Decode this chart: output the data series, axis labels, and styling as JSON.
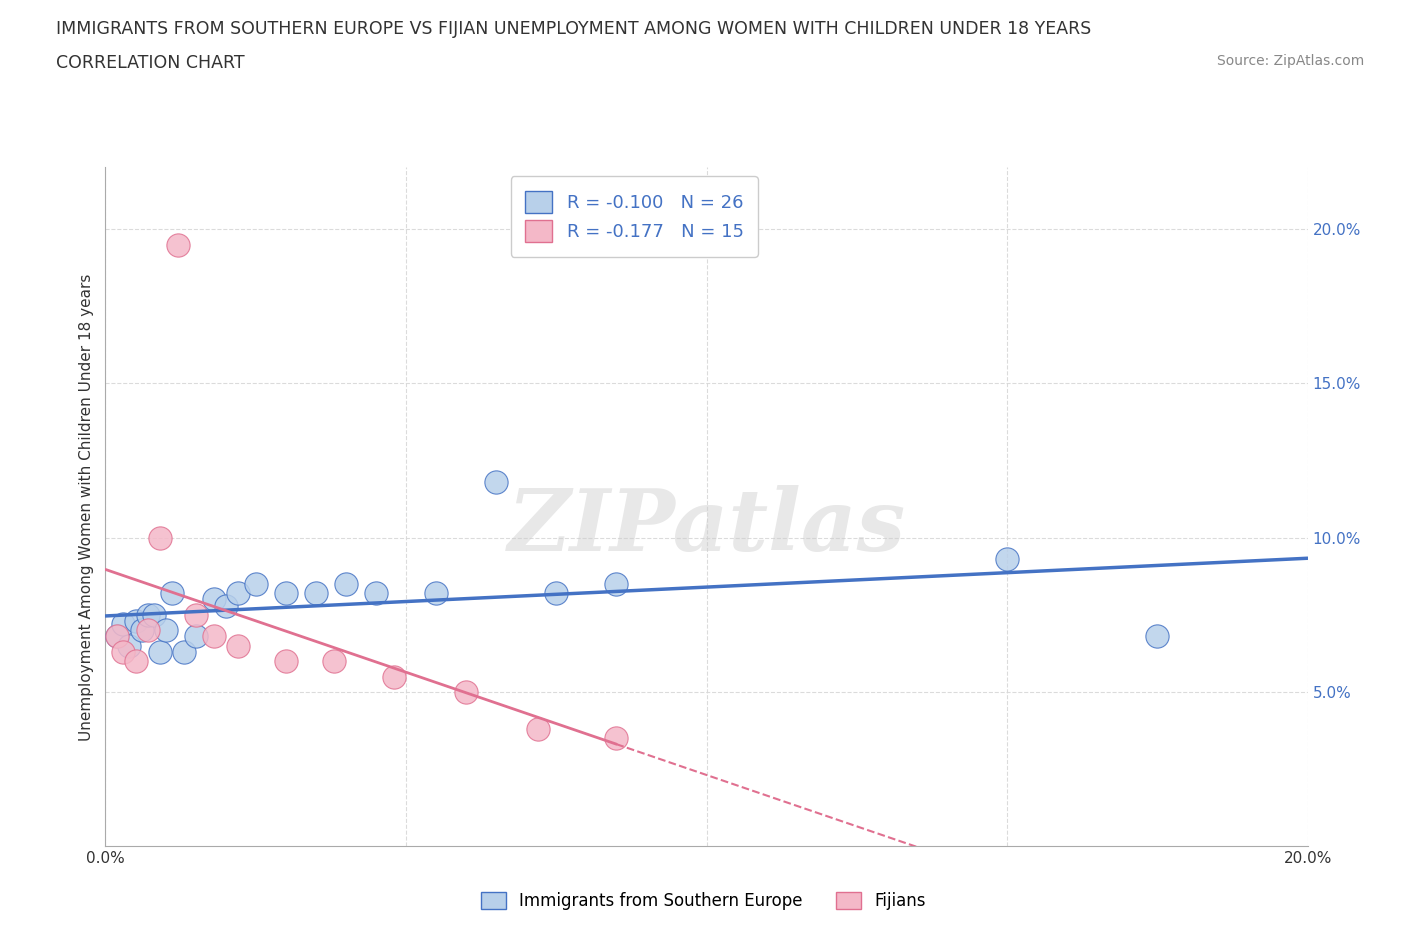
{
  "title": "IMMIGRANTS FROM SOUTHERN EUROPE VS FIJIAN UNEMPLOYMENT AMONG WOMEN WITH CHILDREN UNDER 18 YEARS",
  "subtitle": "CORRELATION CHART",
  "source": "Source: ZipAtlas.com",
  "ylabel": "Unemployment Among Women with Children Under 18 years",
  "xlim": [
    0.0,
    0.2
  ],
  "ylim": [
    0.0,
    0.22
  ],
  "xticks": [
    0.0,
    0.05,
    0.1,
    0.15,
    0.2
  ],
  "yticks": [
    0.05,
    0.1,
    0.15,
    0.2
  ],
  "xticklabels": [
    "0.0%",
    "",
    "",
    "",
    "20.0%"
  ],
  "yticklabels_right": [
    "5.0%",
    "10.0%",
    "15.0%",
    "20.0%"
  ],
  "blue_scatter_x": [
    0.002,
    0.003,
    0.004,
    0.005,
    0.006,
    0.007,
    0.008,
    0.009,
    0.01,
    0.011,
    0.013,
    0.015,
    0.018,
    0.02,
    0.022,
    0.025,
    0.03,
    0.035,
    0.04,
    0.045,
    0.055,
    0.065,
    0.075,
    0.085,
    0.15,
    0.175
  ],
  "blue_scatter_y": [
    0.068,
    0.072,
    0.065,
    0.073,
    0.07,
    0.075,
    0.075,
    0.063,
    0.07,
    0.082,
    0.063,
    0.068,
    0.08,
    0.078,
    0.082,
    0.085,
    0.082,
    0.082,
    0.085,
    0.082,
    0.082,
    0.118,
    0.082,
    0.085,
    0.093,
    0.068
  ],
  "pink_scatter_x": [
    0.002,
    0.003,
    0.005,
    0.007,
    0.009,
    0.012,
    0.015,
    0.018,
    0.022,
    0.03,
    0.038,
    0.048,
    0.06,
    0.072,
    0.085
  ],
  "pink_scatter_y": [
    0.068,
    0.063,
    0.06,
    0.07,
    0.1,
    0.195,
    0.075,
    0.068,
    0.065,
    0.06,
    0.06,
    0.055,
    0.05,
    0.038,
    0.035
  ],
  "blue_R": -0.1,
  "blue_N": 26,
  "pink_R": -0.177,
  "pink_N": 15,
  "blue_fill": "#b8d0ea",
  "blue_edge": "#4472c4",
  "pink_fill": "#f4b8c8",
  "pink_edge": "#e07090",
  "blue_line": "#4472c4",
  "pink_line": "#e07090",
  "legend_labels": [
    "Immigrants from Southern Europe",
    "Fijians"
  ],
  "watermark_text": "ZIPatlas",
  "bg_color": "#ffffff",
  "grid_color": "#d8d8d8",
  "tick_color_right": "#4472c4",
  "text_color": "#333333",
  "source_color": "#888888"
}
